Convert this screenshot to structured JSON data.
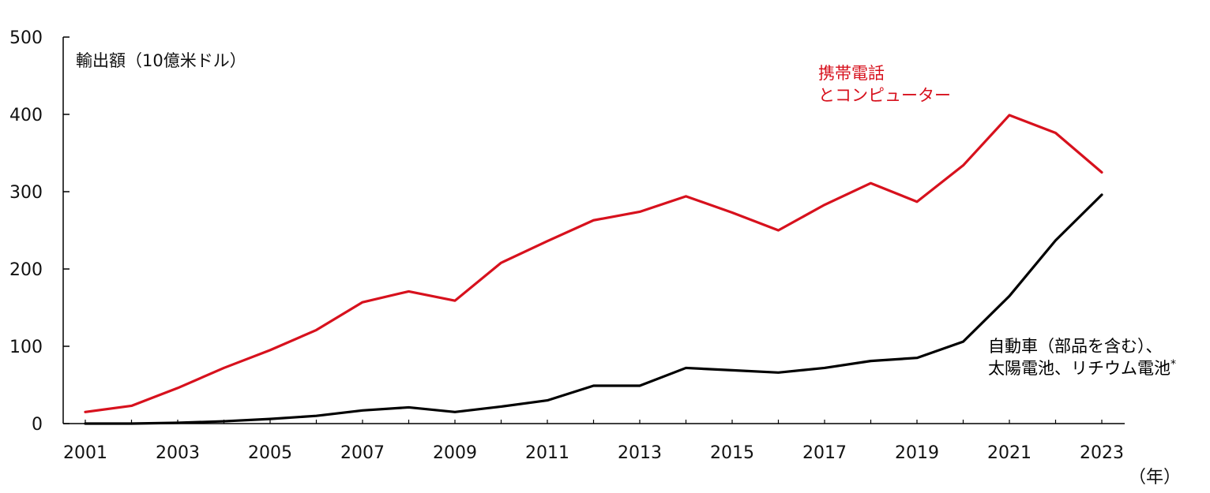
{
  "chart_data": {
    "type": "line",
    "ylabel": "輸出額（10億米ドル）",
    "xlabel": "（年）",
    "ylim": [
      0,
      500
    ],
    "yticks": [
      "0",
      "100",
      "200",
      "300",
      "400",
      "500"
    ],
    "xticks": [
      "2001",
      "2003",
      "2005",
      "2007",
      "2009",
      "2011",
      "2013",
      "2015",
      "2017",
      "2019",
      "2021",
      "2023"
    ],
    "x": [
      2001,
      2002,
      2003,
      2004,
      2005,
      2006,
      2007,
      2008,
      2009,
      2010,
      2011,
      2012,
      2013,
      2014,
      2015,
      2016,
      2017,
      2018,
      2019,
      2020,
      2021,
      2022,
      2023
    ],
    "grid": false,
    "series": [
      {
        "name_lines": [
          "携帯電話",
          "とコンピューター"
        ],
        "color": "#d7111d",
        "values": [
          15,
          23,
          46,
          72,
          95,
          121,
          157,
          171,
          159,
          208,
          236,
          263,
          274,
          294,
          273,
          250,
          283,
          311,
          287,
          334,
          399,
          376,
          325
        ]
      },
      {
        "name_lines": [
          "自動車（部品を含む）、",
          "太陽電池、リチウム電池*"
        ],
        "color": "#000000",
        "values": [
          0,
          0,
          1,
          3,
          6,
          10,
          17,
          21,
          15,
          22,
          30,
          49,
          49,
          72,
          69,
          66,
          72,
          81,
          85,
          106,
          165,
          237,
          296
        ]
      }
    ]
  }
}
